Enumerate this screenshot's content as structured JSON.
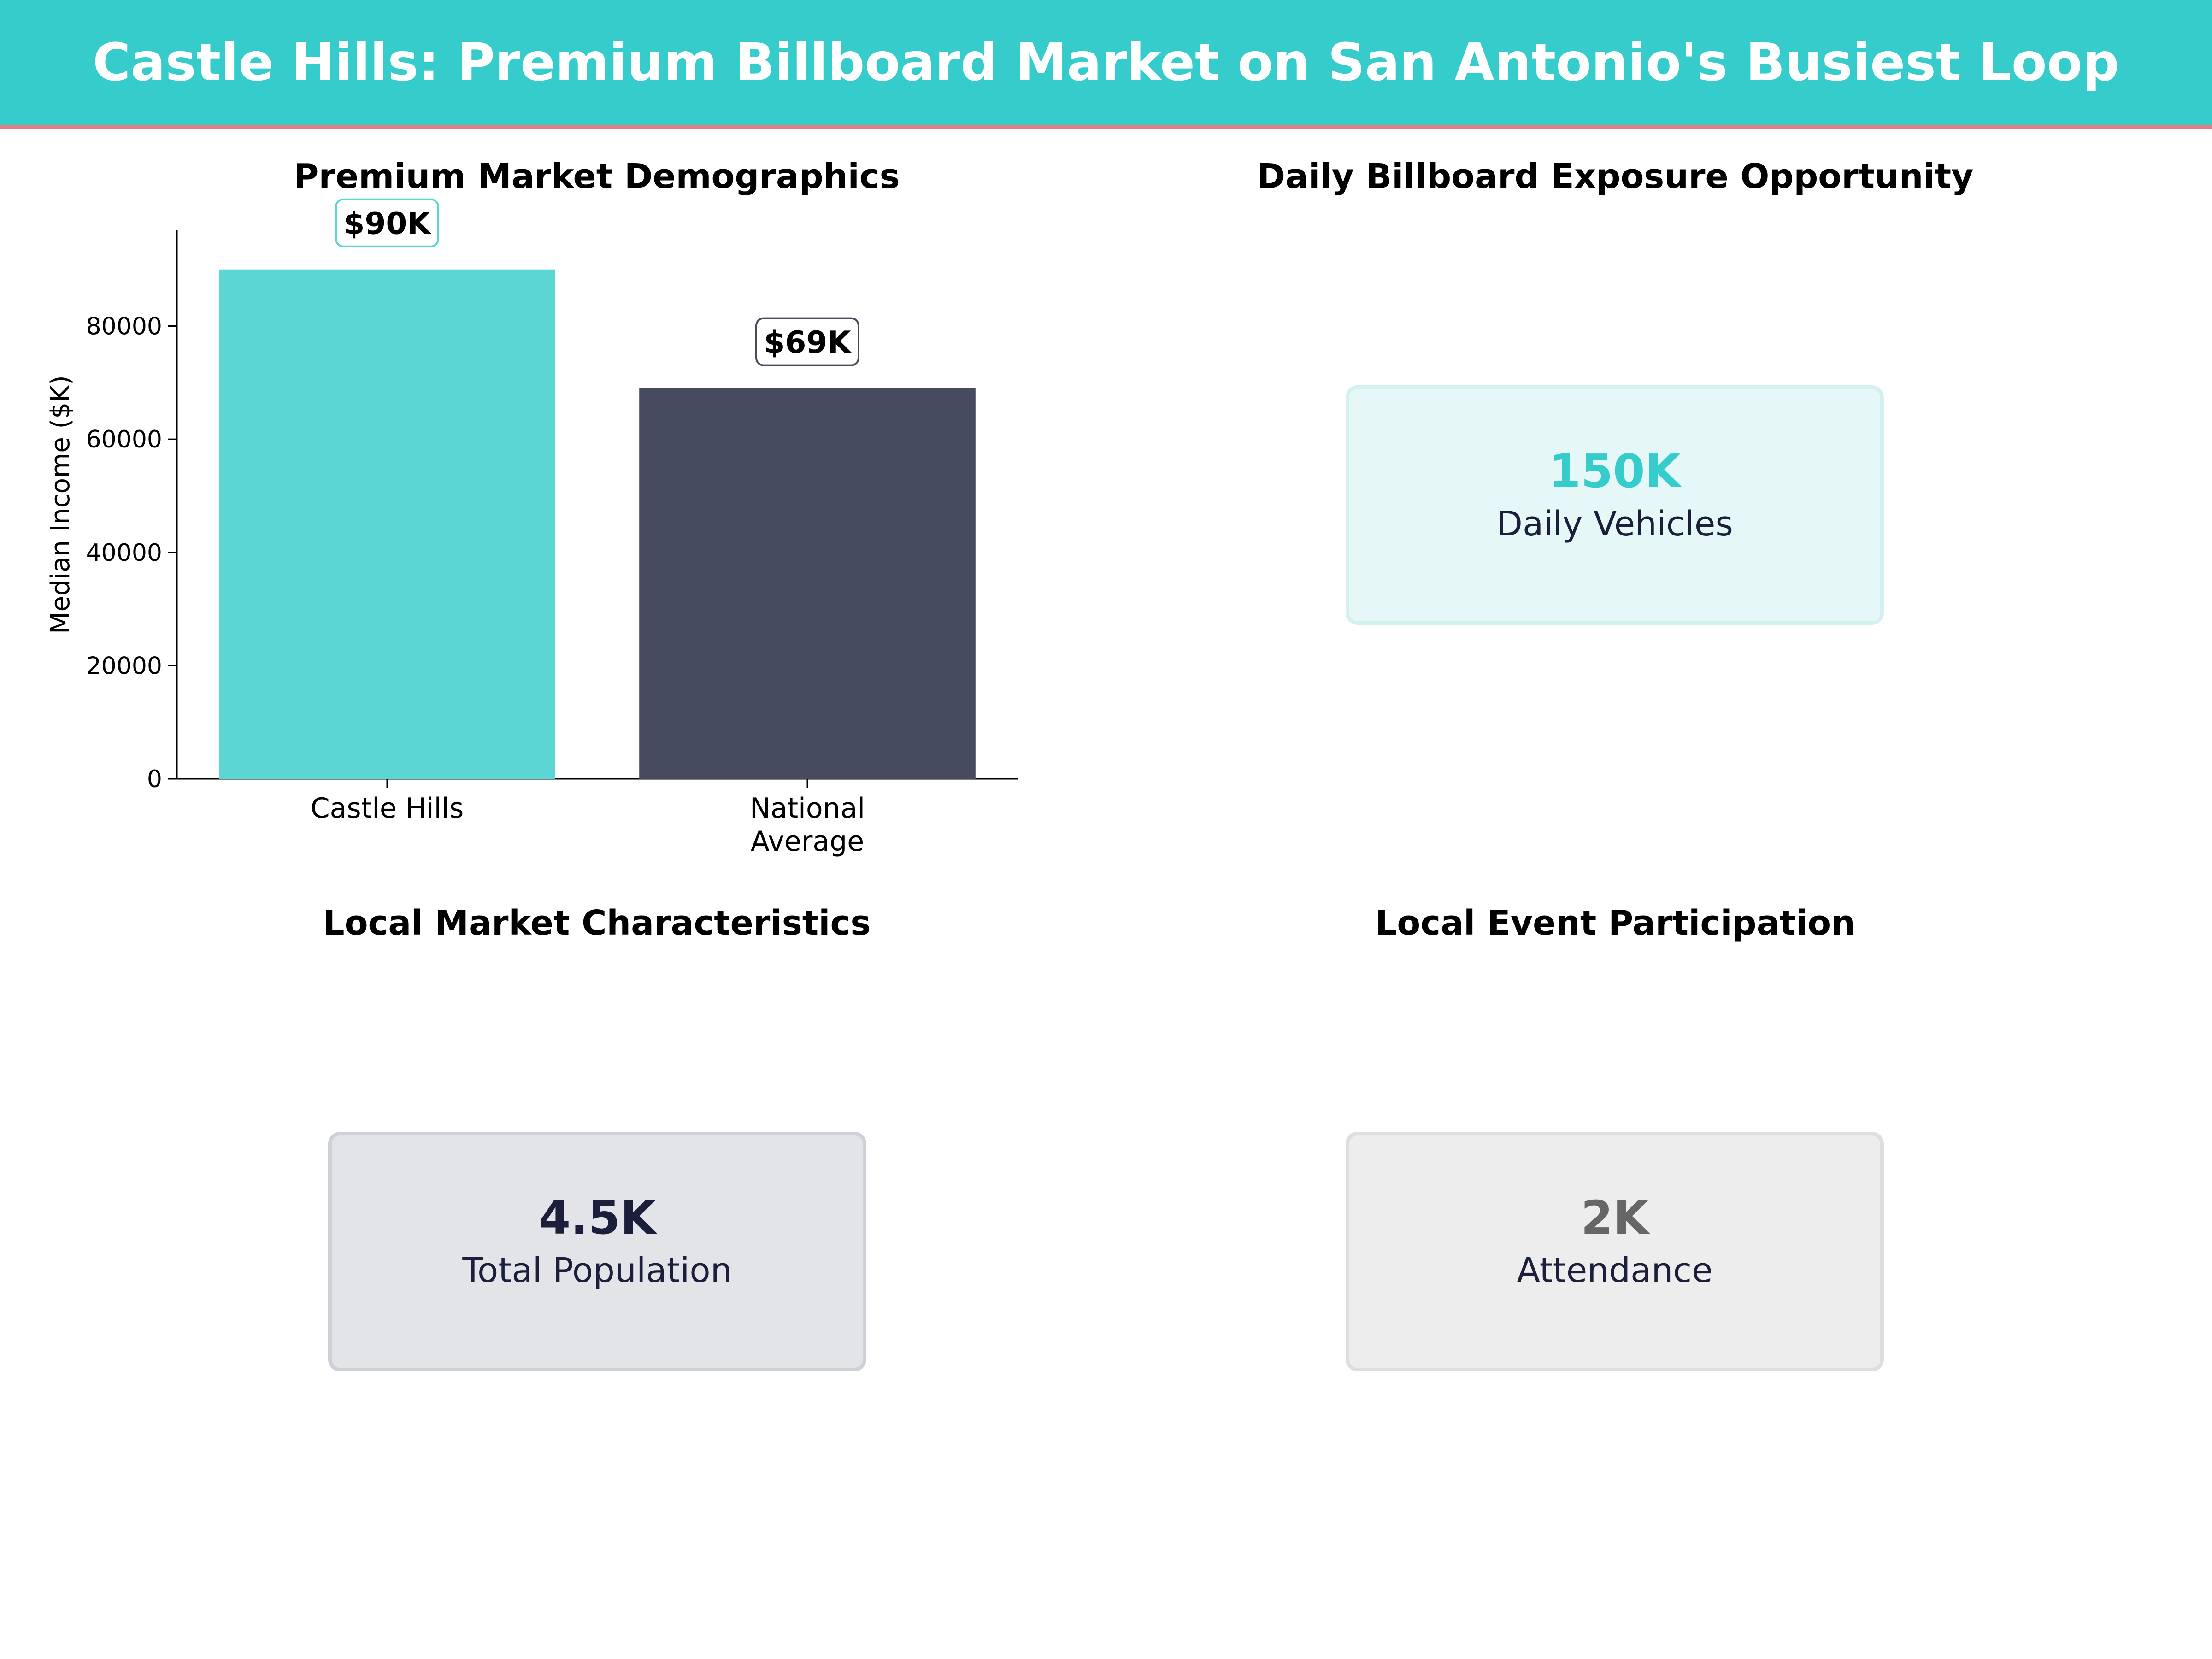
{
  "header": {
    "title": "Castle Hills: Premium Billboard Market on San Antonio's Busiest Loop",
    "background": "#36CCCC",
    "accent_line": "#E97A85"
  },
  "panels": {
    "demographics": {
      "title": "Premium Market Demographics"
    },
    "exposure": {
      "title": "Daily Billboard Exposure Opportunity",
      "value": "150K",
      "label": "Daily Vehicles",
      "value_color": "#36CCCC",
      "card_bg": "#E5F7F7",
      "card_border": "#D3F1F1"
    },
    "characteristics": {
      "title": "Local Market Characteristics",
      "value": "4.5K",
      "label": "Total Population",
      "value_color": "#1B1F3B",
      "card_bg": "#E3E4E8",
      "card_border": "#CFD1D8"
    },
    "events": {
      "title": "Local Event Participation",
      "value": "2K",
      "label": "Attendance",
      "value_color": "#666666",
      "card_bg": "#EDEDED",
      "card_border": "#DEDEDE"
    }
  },
  "chart_data": {
    "type": "bar",
    "categories": [
      "Castle Hills",
      "National\nAverage"
    ],
    "values": [
      90000,
      69000
    ],
    "data_labels": [
      "$90K",
      "$69K"
    ],
    "colors": [
      "#5CD6D4",
      "#464B60"
    ],
    "label_border_colors": [
      "#5CD6D4",
      "#464B60"
    ],
    "title": "Premium Market Demographics",
    "xlabel": "",
    "ylabel": "Median Income ($K)",
    "ylim": [
      0,
      96900
    ],
    "yticks": [
      0,
      20000,
      40000,
      60000,
      80000
    ],
    "grid": false,
    "legend": "none"
  }
}
